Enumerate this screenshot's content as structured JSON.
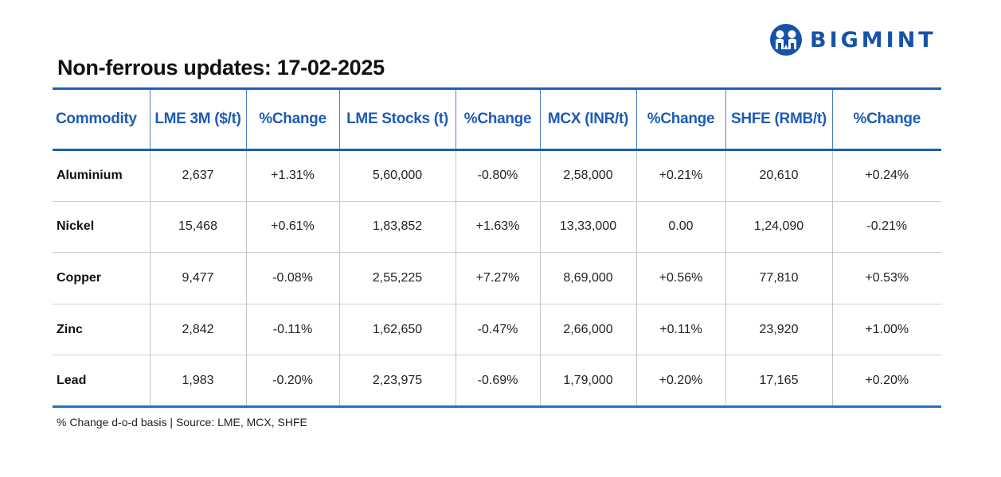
{
  "brand": {
    "name": "BIGMINT",
    "color": "#1653a8"
  },
  "title": "Non-ferrous updates: 17-02-2025",
  "table": {
    "headers": [
      "Commodity",
      "LME 3M ($/t)",
      "%Change",
      "LME Stocks (t)",
      "%Change",
      "MCX (INR/t)",
      "%Change",
      "SHFE (RMB/t)",
      "%Change"
    ],
    "rows": [
      {
        "commodity": "Aluminium",
        "lme3m": "2,637",
        "lme3m_chg": "+1.31%",
        "lme3m_chg_color": "pos",
        "stocks": "5,60,000",
        "stocks_chg": "-0.80%",
        "stocks_chg_color": "neg",
        "mcx": "2,58,000",
        "mcx_chg": "+0.21%",
        "mcx_chg_color": "pos",
        "shfe": "20,610",
        "shfe_chg": "+0.24%",
        "shfe_chg_color": "pos"
      },
      {
        "commodity": "Nickel",
        "lme3m": "15,468",
        "lme3m_chg": "+0.61%",
        "lme3m_chg_color": "pos",
        "stocks": "1,83,852",
        "stocks_chg": "+1.63%",
        "stocks_chg_color": "pos",
        "mcx": "13,33,000",
        "mcx_chg": "0.00",
        "mcx_chg_color": "neu",
        "shfe": "1,24,090",
        "shfe_chg": "-0.21%",
        "shfe_chg_color": "neg"
      },
      {
        "commodity": "Copper",
        "lme3m": "9,477",
        "lme3m_chg": "-0.08%",
        "lme3m_chg_color": "neg",
        "stocks": "2,55,225",
        "stocks_chg": "+7.27%",
        "stocks_chg_color": "neg",
        "mcx": "8,69,000",
        "mcx_chg": "+0.56%",
        "mcx_chg_color": "pos",
        "shfe": "77,810",
        "shfe_chg": "+0.53%",
        "shfe_chg_color": "pos"
      },
      {
        "commodity": "Zinc",
        "lme3m": "2,842",
        "lme3m_chg": "-0.11%",
        "lme3m_chg_color": "neg",
        "stocks": "1,62,650",
        "stocks_chg": "-0.47%",
        "stocks_chg_color": "neg",
        "mcx": "2,66,000",
        "mcx_chg": "+0.11%",
        "mcx_chg_color": "pos",
        "shfe": "23,920",
        "shfe_chg": "+1.00%",
        "shfe_chg_color": "pos"
      },
      {
        "commodity": "Lead",
        "lme3m": "1,983",
        "lme3m_chg": "-0.20%",
        "lme3m_chg_color": "neg",
        "stocks": "2,23,975",
        "stocks_chg": "-0.69%",
        "stocks_chg_color": "pos",
        "mcx": "1,79,000",
        "mcx_chg": "+0.20%",
        "mcx_chg_color": "pos",
        "shfe": "17,165",
        "shfe_chg": "+0.20%",
        "shfe_chg_color": "pos"
      }
    ]
  },
  "footnote": "% Change d-o-d basis | Source: LME, MCX, SHFE",
  "colors": {
    "header_text": "#1d5cb4",
    "rule": "#1a5fb4",
    "positive": "#28a55a",
    "negative": "#e0303a"
  }
}
